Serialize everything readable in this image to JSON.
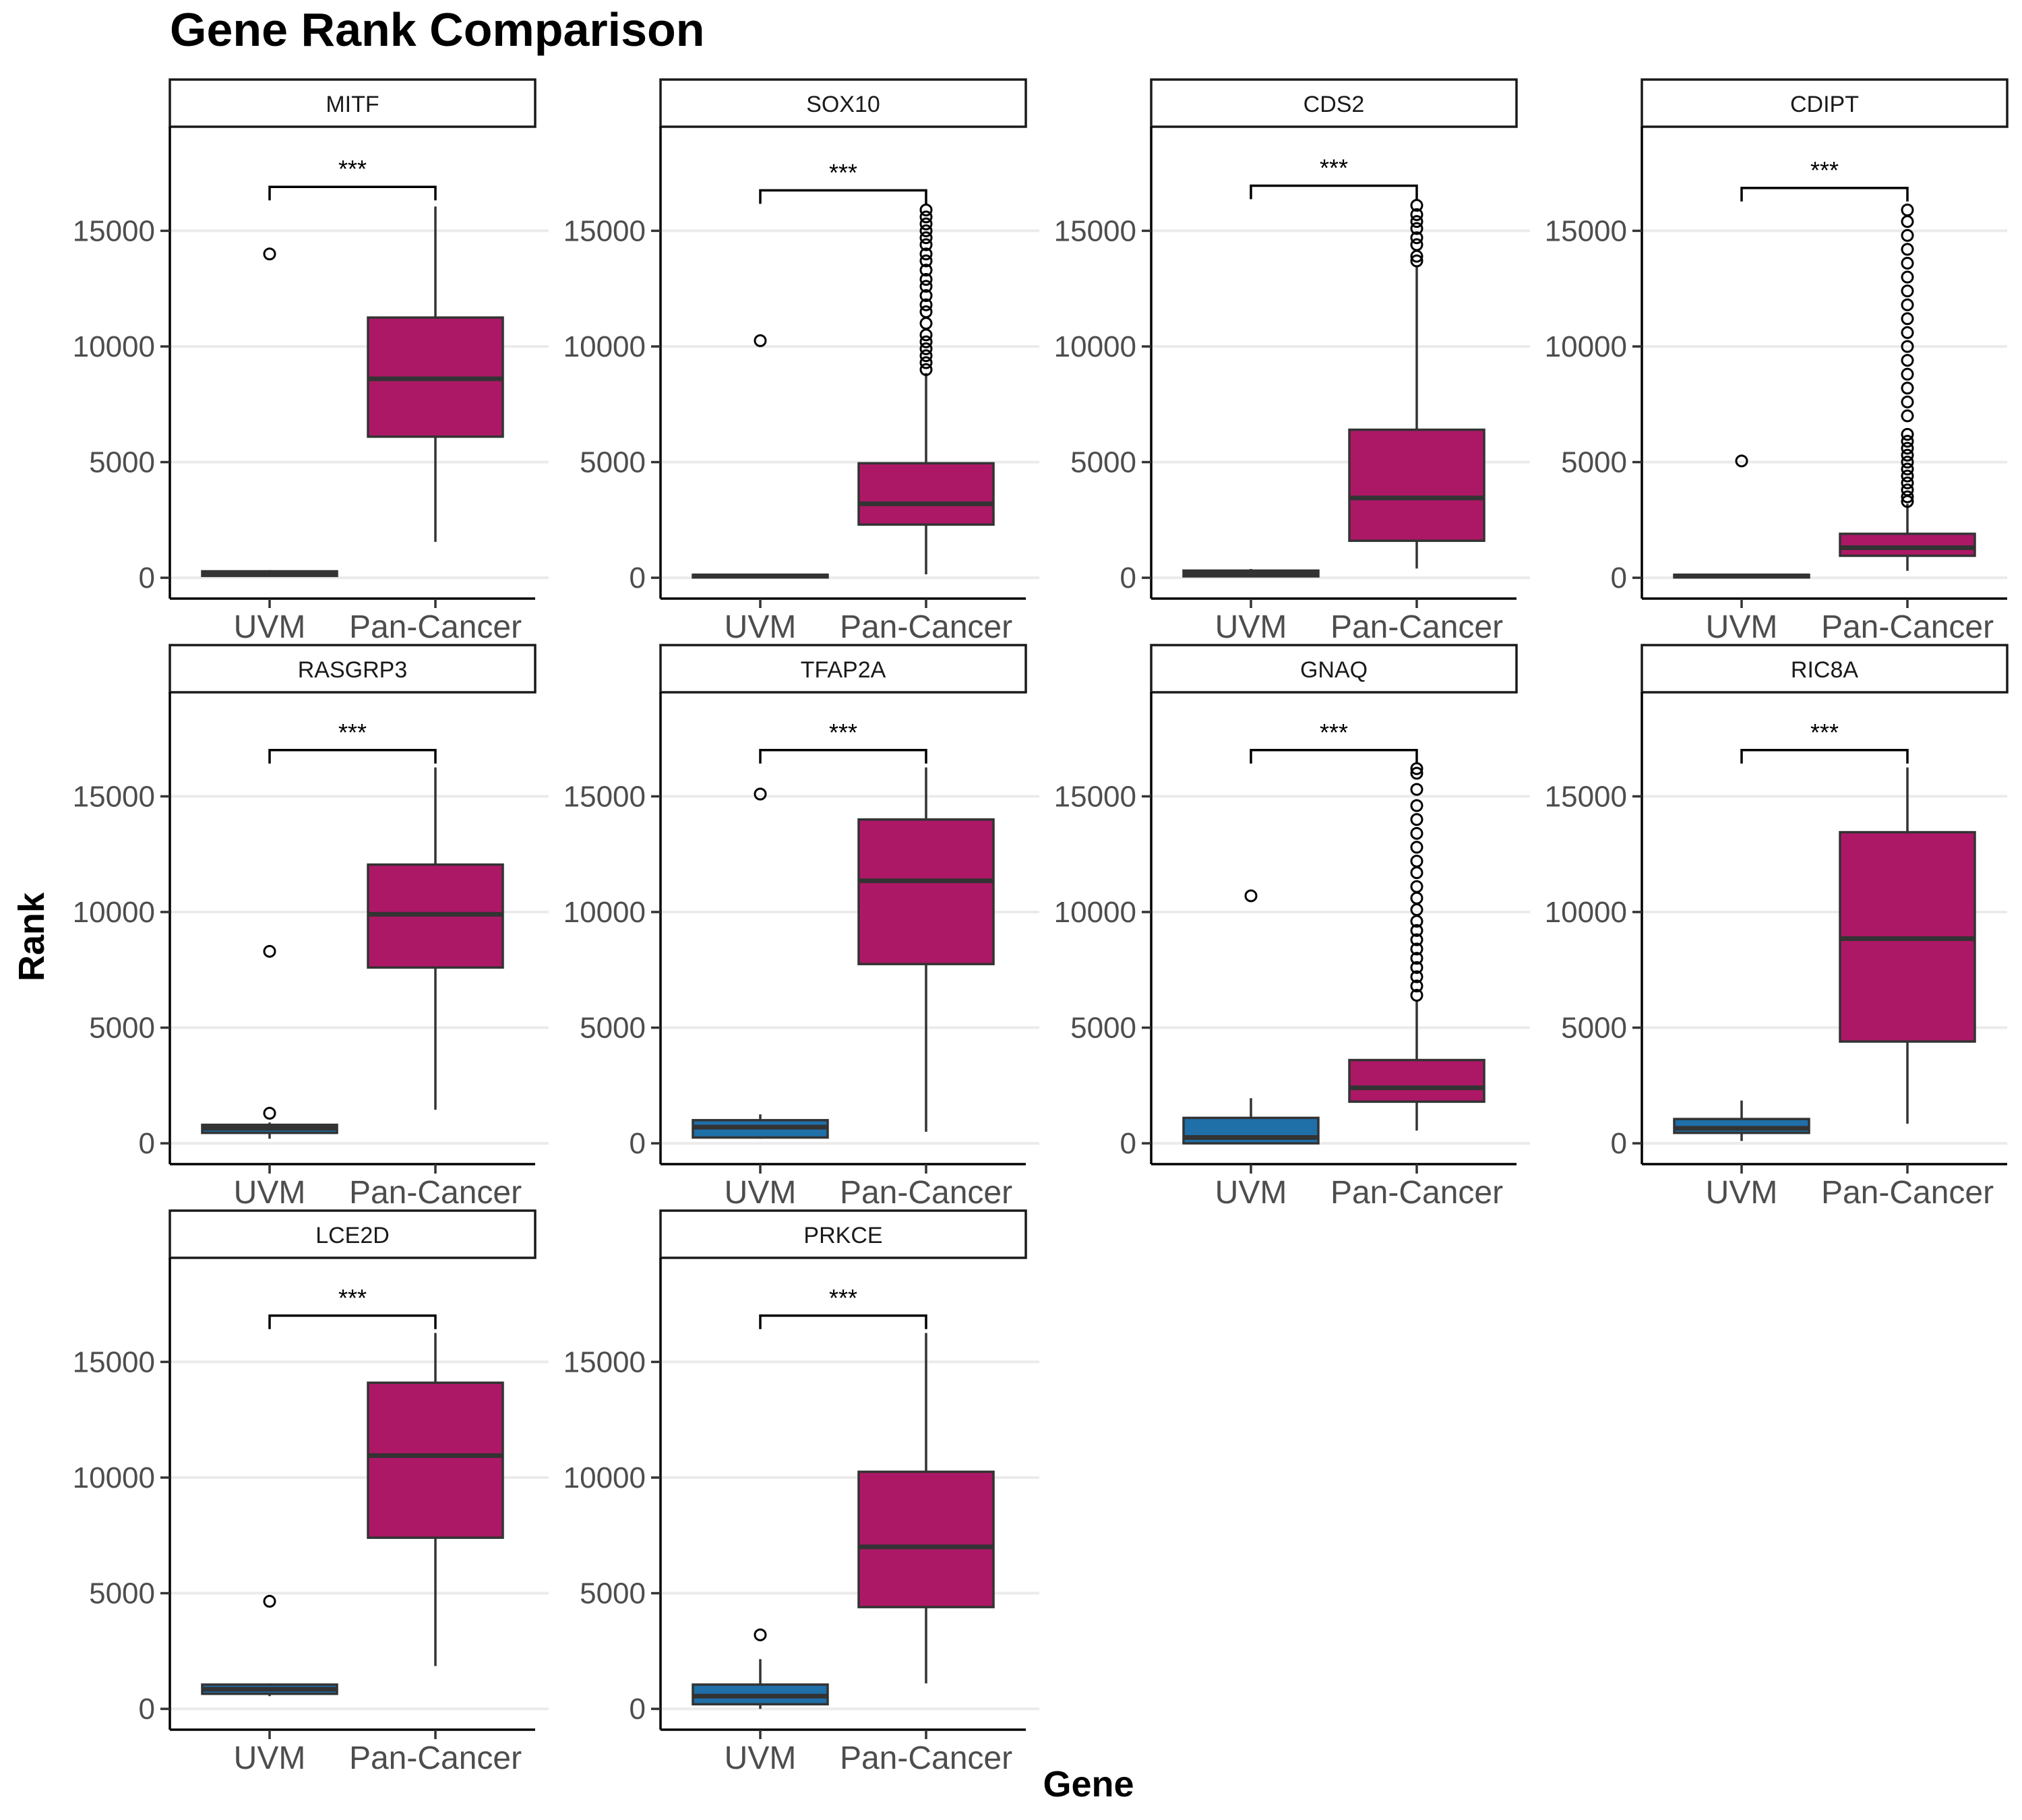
{
  "chart_data": {
    "type": "boxplot",
    "title": "Gene Rank Comparison",
    "xlabel": "Gene",
    "ylabel": "Rank",
    "ylim": [
      -900,
      19500
    ],
    "yticks": [
      0,
      5000,
      10000,
      15000
    ],
    "ytick_labels": [
      "0",
      "5000",
      "10000",
      "15000"
    ],
    "grid": "horizontal-major",
    "groups": [
      "UVM",
      "Pan-Cancer"
    ],
    "colors": {
      "UVM": "#1f6fa8",
      "Pan-Cancer": "#ad1866"
    },
    "panels": [
      {
        "gene": "MITF",
        "sig": "***",
        "sig_y": 16900,
        "boxes": [
          {
            "group": "UVM",
            "whisker_low": 80,
            "q1": 80,
            "median": 170,
            "q3": 280,
            "whisker_high": 330,
            "outliers": [
              14000
            ]
          },
          {
            "group": "Pan-Cancer",
            "whisker_low": 1550,
            "q1": 6100,
            "median": 8600,
            "q3": 11250,
            "whisker_high": 16050,
            "outliers": []
          }
        ]
      },
      {
        "gene": "SOX10",
        "sig": "***",
        "sig_y": 16750,
        "boxes": [
          {
            "group": "UVM",
            "whisker_low": 30,
            "q1": 30,
            "median": 80,
            "q3": 130,
            "whisker_high": 160,
            "outliers": [
              10250
            ]
          },
          {
            "group": "Pan-Cancer",
            "whisker_low": 150,
            "q1": 2300,
            "median": 3200,
            "q3": 4950,
            "whisker_high": 8850,
            "outliers": [
              9000,
              9300,
              9600,
              9900,
              10200,
              10500,
              11000,
              11500,
              11800,
              12200,
              12600,
              12900,
              13300,
              13700,
              14000,
              14400,
              14700,
              15000,
              15300,
              15600,
              15900
            ]
          }
        ]
      },
      {
        "gene": "CDS2",
        "sig": "***",
        "sig_y": 16950,
        "boxes": [
          {
            "group": "UVM",
            "whisker_low": 60,
            "q1": 60,
            "median": 200,
            "q3": 310,
            "whisker_high": 380,
            "outliers": []
          },
          {
            "group": "Pan-Cancer",
            "whisker_low": 400,
            "q1": 1600,
            "median": 3450,
            "q3": 6400,
            "whisker_high": 13500,
            "outliers": [
              13700,
              13900,
              14400,
              14700,
              15100,
              15400,
              15700,
              16100
            ]
          }
        ]
      },
      {
        "gene": "CDIPT",
        "sig": "***",
        "sig_y": 16850,
        "boxes": [
          {
            "group": "UVM",
            "whisker_low": 30,
            "q1": 30,
            "median": 80,
            "q3": 130,
            "whisker_high": 160,
            "outliers": [
              5050
            ]
          },
          {
            "group": "Pan-Cancer",
            "whisker_low": 300,
            "q1": 950,
            "median": 1300,
            "q3": 1900,
            "whisker_high": 3200,
            "outliers": [
              3300,
              3500,
              3800,
              4100,
              4400,
              4700,
              5000,
              5300,
              5600,
              5900,
              6200,
              7000,
              7600,
              8200,
              8800,
              9400,
              10000,
              10600,
              11200,
              11800,
              12400,
              13000,
              13600,
              14200,
              14800,
              15400,
              15900
            ]
          }
        ]
      },
      {
        "gene": "RASGRP3",
        "sig": "***",
        "sig_y": 17000,
        "boxes": [
          {
            "group": "UVM",
            "whisker_low": 200,
            "q1": 450,
            "median": 650,
            "q3": 800,
            "whisker_high": 900,
            "outliers": [
              1300,
              8300
            ]
          },
          {
            "group": "Pan-Cancer",
            "whisker_low": 1450,
            "q1": 7600,
            "median": 9900,
            "q3": 12050,
            "whisker_high": 16250,
            "outliers": []
          }
        ]
      },
      {
        "gene": "TFAP2A",
        "sig": "***",
        "sig_y": 17000,
        "boxes": [
          {
            "group": "UVM",
            "whisker_low": 200,
            "q1": 250,
            "median": 700,
            "q3": 1000,
            "whisker_high": 1250,
            "outliers": [
              15100
            ]
          },
          {
            "group": "Pan-Cancer",
            "whisker_low": 500,
            "q1": 7750,
            "median": 11350,
            "q3": 14000,
            "whisker_high": 16250,
            "outliers": []
          }
        ]
      },
      {
        "gene": "GNAQ",
        "sig": "***",
        "sig_y": 17000,
        "boxes": [
          {
            "group": "UVM",
            "whisker_low": 0,
            "q1": 0,
            "median": 250,
            "q3": 1100,
            "whisker_high": 1950,
            "outliers": [
              10700
            ]
          },
          {
            "group": "Pan-Cancer",
            "whisker_low": 550,
            "q1": 1800,
            "median": 2400,
            "q3": 3600,
            "whisker_high": 6200,
            "outliers": [
              6400,
              6800,
              7200,
              7600,
              8000,
              8400,
              8800,
              9200,
              9600,
              10100,
              10600,
              11100,
              11700,
              12200,
              12800,
              13400,
              14000,
              14600,
              15300,
              16000,
              16200
            ]
          }
        ]
      },
      {
        "gene": "RIC8A",
        "sig": "***",
        "sig_y": 17000,
        "boxes": [
          {
            "group": "UVM",
            "whisker_low": 100,
            "q1": 450,
            "median": 650,
            "q3": 1050,
            "whisker_high": 1850,
            "outliers": []
          },
          {
            "group": "Pan-Cancer",
            "whisker_low": 850,
            "q1": 4400,
            "median": 8850,
            "q3": 13450,
            "whisker_high": 16250,
            "outliers": []
          }
        ]
      },
      {
        "gene": "LCE2D",
        "sig": "***",
        "sig_y": 17000,
        "boxes": [
          {
            "group": "UVM",
            "whisker_low": 550,
            "q1": 650,
            "median": 850,
            "q3": 1050,
            "whisker_high": 1100,
            "outliers": [
              4650
            ]
          },
          {
            "group": "Pan-Cancer",
            "whisker_low": 1850,
            "q1": 7400,
            "median": 10950,
            "q3": 14100,
            "whisker_high": 16250,
            "outliers": []
          }
        ]
      },
      {
        "gene": "PRKCE",
        "sig": "***",
        "sig_y": 17000,
        "boxes": [
          {
            "group": "UVM",
            "whisker_low": 0,
            "q1": 200,
            "median": 550,
            "q3": 1050,
            "whisker_high": 2150,
            "outliers": [
              3200
            ]
          },
          {
            "group": "Pan-Cancer",
            "whisker_low": 1100,
            "q1": 4400,
            "median": 7000,
            "q3": 10250,
            "whisker_high": 16250,
            "outliers": []
          }
        ]
      }
    ]
  }
}
